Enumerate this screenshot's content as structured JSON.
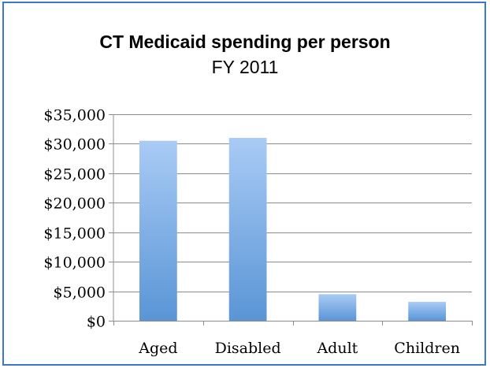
{
  "chart_data": {
    "type": "bar",
    "title": "CT Medicaid spending per person",
    "subtitle": "FY 2011",
    "categories": [
      "Aged",
      "Disabled",
      "Adult",
      "Children"
    ],
    "values": [
      30500,
      31000,
      4500,
      3200
    ],
    "ylim": [
      0,
      35000
    ],
    "yticks": [
      0,
      5000,
      10000,
      15000,
      20000,
      25000,
      30000,
      35000
    ],
    "ytick_labels": [
      "$0",
      "$5,000",
      "$10,000",
      "$15,000",
      "$20,000",
      "$25,000",
      "$30,000",
      "$35,000"
    ],
    "grid": true,
    "legend": "none",
    "colors": {
      "bar_top": "#a9cbf5",
      "bar_bottom": "#5a95d6",
      "grid": "#8c8c8c",
      "frame": "#3c78c8"
    }
  }
}
